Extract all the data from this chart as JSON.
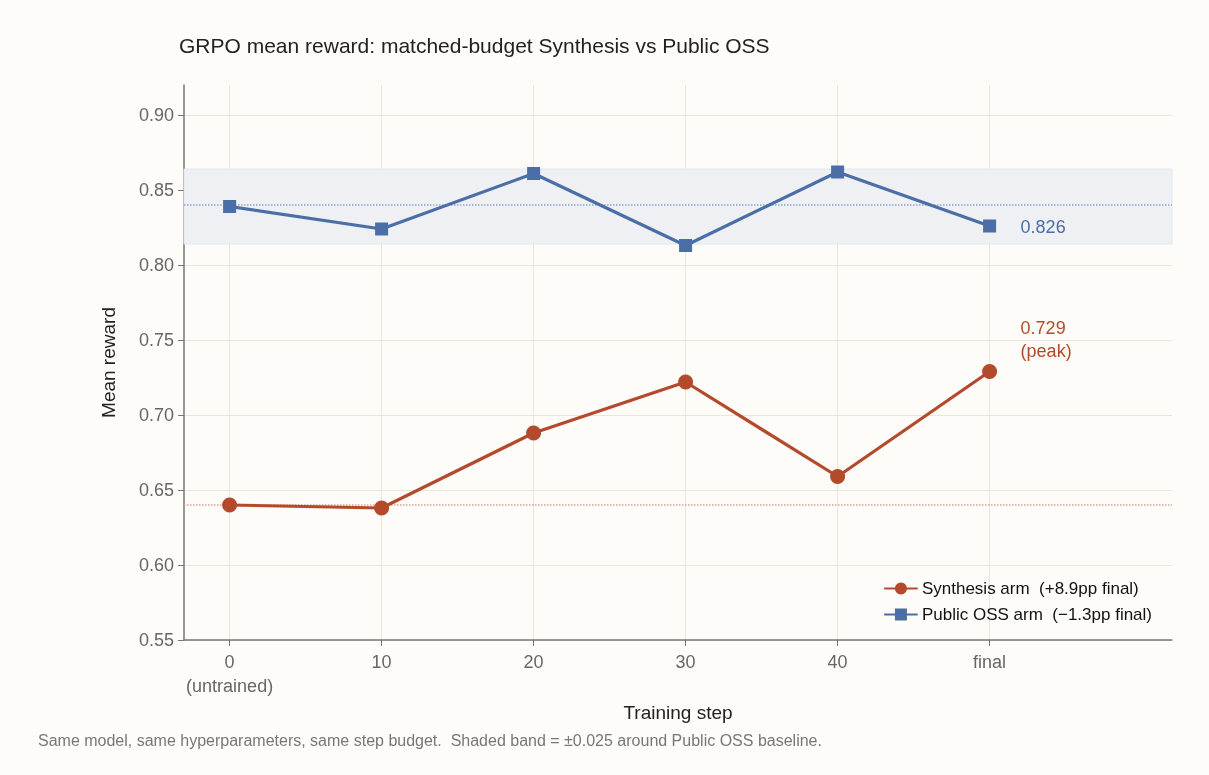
{
  "chart_data": {
    "type": "line",
    "title": "GRPO mean reward: matched-budget Synthesis vs Public OSS",
    "xlabel": "Training step",
    "ylabel": "Mean reward",
    "x": [
      0,
      10,
      20,
      30,
      40,
      50
    ],
    "series": [
      {
        "name": "Synthesis arm  (+8.9pp final)",
        "color": "#b34a2b",
        "marker": "circle",
        "values": [
          0.64,
          0.638,
          0.688,
          0.722,
          0.659,
          0.729
        ]
      },
      {
        "name": "Public OSS arm  (−1.3pp final)",
        "color": "#4a6ea5",
        "marker": "square",
        "values": [
          0.839,
          0.824,
          0.861,
          0.813,
          0.862,
          0.826
        ]
      }
    ],
    "xlim": [
      -3,
      62
    ],
    "xticks": [
      {
        "value": 0,
        "label": "0\n(untrained)"
      },
      10,
      20,
      30,
      40,
      {
        "value": 50,
        "label": "final"
      }
    ],
    "ylim": [
      0.55,
      0.92
    ],
    "yticks": [
      {
        "value": 0.55,
        "label": "0.55"
      },
      {
        "value": 0.6,
        "label": "0.60"
      },
      {
        "value": 0.65,
        "label": "0.65"
      },
      {
        "value": 0.7,
        "label": "0.70"
      },
      {
        "value": 0.75,
        "label": "0.75"
      },
      {
        "value": 0.8,
        "label": "0.80"
      },
      {
        "value": 0.85,
        "label": "0.85"
      },
      {
        "value": 0.9,
        "label": "0.90"
      }
    ],
    "grid": true,
    "legend": "bottom right",
    "line_style": "solid",
    "ref_lines": [
      {
        "axis": "y",
        "value": 0.839,
        "color": "#8fa7cf",
        "line_style": "dotted"
      },
      {
        "axis": "y",
        "value": 0.64,
        "color": "#e0a08f",
        "line_style": "dotted"
      }
    ],
    "bands": [
      {
        "axis": "y",
        "from": 0.814,
        "to": 0.864,
        "color": "#eef0f3"
      }
    ],
    "annotations": [
      {
        "text": "0.826",
        "x": 50,
        "y": 0.826
      },
      {
        "text": "0.729\n(peak)",
        "x": 50,
        "y": 0.729
      },
      "Same model, same hyperparameters, same step budget.  Shaded band = ±0.025 around Public OSS baseline."
    ]
  }
}
